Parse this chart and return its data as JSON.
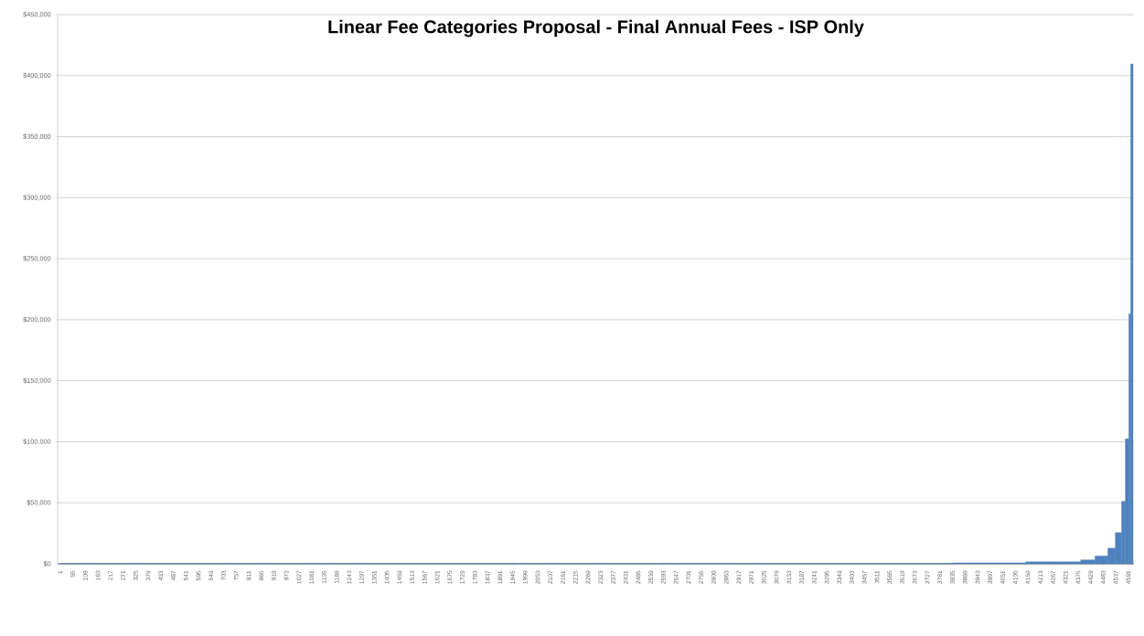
{
  "chart_data": {
    "type": "histogram",
    "title": "Linear Fee Categories Proposal - Final Annual Fees - ISP Only",
    "bins": [
      1,
      3835,
      4150,
      4386,
      4448,
      4503,
      4535,
      4562,
      4578,
      4593,
      4601,
      4611
    ],
    "values": [
      300,
      800,
      1600,
      3200,
      6400,
      12800,
      25600,
      51200,
      102400,
      204800,
      409600
    ],
    "color": "#4f81bd",
    "xlim": [
      -10,
      4615
    ],
    "xticks": [
      1,
      55,
      109,
      163,
      217,
      271,
      325,
      379,
      433,
      487,
      541,
      595,
      649,
      703,
      757,
      811,
      865,
      919,
      973,
      1027,
      1081,
      1135,
      1189,
      1243,
      1297,
      1351,
      1405,
      1459,
      1513,
      1567,
      1621,
      1675,
      1729,
      1783,
      1837,
      1891,
      1945,
      1999,
      2053,
      2107,
      2161,
      2215,
      2269,
      2323,
      2377,
      2431,
      2485,
      2539,
      2593,
      2647,
      2701,
      2755,
      2809,
      2863,
      2917,
      2971,
      3025,
      3079,
      3133,
      3187,
      3241,
      3295,
      3349,
      3403,
      3457,
      3511,
      3565,
      3619,
      3673,
      3727,
      3781,
      3835,
      3889,
      3943,
      3997,
      4051,
      4105,
      4159,
      4213,
      4267,
      4321,
      4375,
      4429,
      4483,
      4537,
      4591
    ],
    "ylim": [
      0,
      450000
    ],
    "yticks": [
      {
        "value": 0,
        "label": "$0"
      },
      {
        "value": 50000,
        "label": "$50,000"
      },
      {
        "value": 100000,
        "label": "$100,000"
      },
      {
        "value": 150000,
        "label": "$150,000"
      },
      {
        "value": 200000,
        "label": "$200,000"
      },
      {
        "value": 250000,
        "label": "$250,000"
      },
      {
        "value": 300000,
        "label": "$300,000"
      },
      {
        "value": 350000,
        "label": "$350,000"
      },
      {
        "value": 400000,
        "label": "$400,000"
      },
      {
        "value": 450000,
        "label": "$450,000"
      }
    ],
    "grid": "y"
  }
}
